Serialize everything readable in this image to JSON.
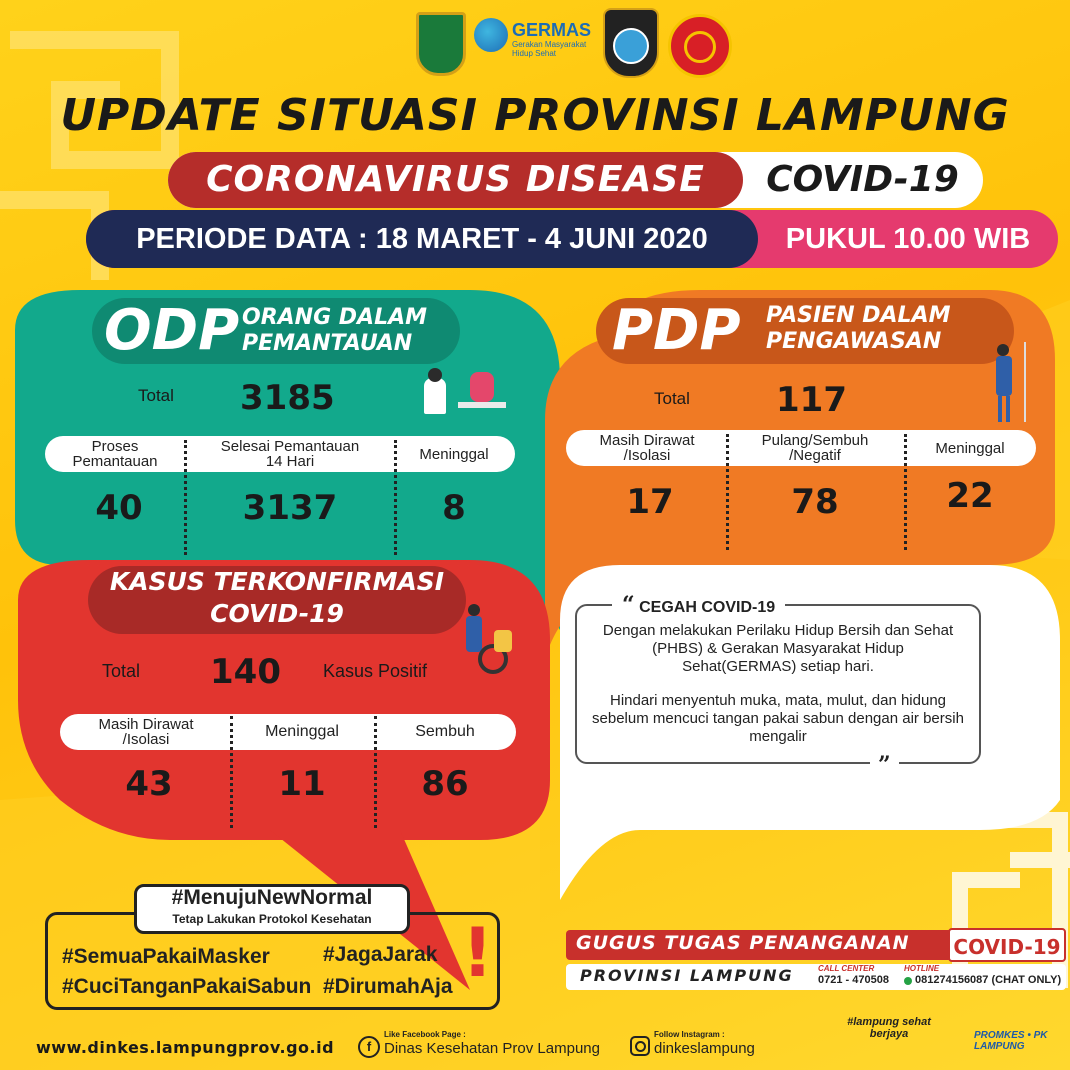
{
  "colors": {
    "background": "#ffc20a",
    "odp_green": "#12a98c",
    "pdp_orange": "#f07a24",
    "confirmed_red": "#e2352f",
    "banner_red": "#b52d2a",
    "navy": "#1f2a55",
    "pink": "#e53a6e",
    "white": "#ffffff"
  },
  "header": {
    "logos": [
      "lampung-province-emblem",
      "germas-logo",
      "lampung-police-emblem",
      "military-emblem"
    ],
    "germas_label": "GERMAS",
    "germas_sub": "Gerakan Masyarakat Hidup Sehat",
    "title": "UPDATE SITUASI PROVINSI LAMPUNG",
    "subtitle_left": "CORONAVIRUS DISEASE",
    "subtitle_right": "COVID-19",
    "period": "PERIODE DATA : 18 MARET - 4 JUNI 2020",
    "time": "PUKUL 10.00 WIB"
  },
  "odp": {
    "abbr": "ODP",
    "full_line1": "ORANG DALAM",
    "full_line2": "PEMANTAUAN",
    "total_label": "Total",
    "total_value": "3185",
    "columns": [
      "Proses\nPemantauan",
      "Selesai Pemantauan\n14 Hari",
      "Meninggal"
    ],
    "values": [
      "40",
      "3137",
      "8"
    ]
  },
  "pdp": {
    "abbr": "PDP",
    "full_line1": "PASIEN DALAM",
    "full_line2": "PENGAWASAN",
    "total_label": "Total",
    "total_value": "117",
    "columns": [
      "Masih Dirawat\n/Isolasi",
      "Pulang/Sembuh\n/Negatif",
      "Meninggal"
    ],
    "values": [
      "17",
      "78",
      "22"
    ]
  },
  "confirmed": {
    "title_line1": "KASUS TERKONFIRMASI",
    "title_line2": "COVID-19",
    "total_label": "Total",
    "total_value": "140",
    "positive_label": "Kasus Positif",
    "columns": [
      "Masih Dirawat\n/Isolasi",
      "Meninggal",
      "Sembuh"
    ],
    "values": [
      "43",
      "11",
      "86"
    ]
  },
  "prevention": {
    "title": "CEGAH COVID-19",
    "para1": "Dengan melakukan Perilaku Hidup Bersih dan Sehat (PHBS) & Gerakan Masyarakat Hidup Sehat(GERMAS) setiap hari.",
    "para2": "Hindari menyentuh muka, mata, mulut, dan hidung sebelum mencuci tangan pakai sabun dengan air bersih mengalir"
  },
  "campaign": {
    "headline": "#MenujuNewNormal",
    "subline": "Tetap Lakukan Protokol Kesehatan",
    "tags": [
      "#SemuaPakaiMasker",
      "#JagaJarak",
      "#CuciTanganPakaiSabun",
      "#DirumahAja"
    ],
    "mark": "!"
  },
  "task_force": {
    "line1": "GUGUS TUGAS PENANGANAN",
    "badge": "COVID-19",
    "line2": "PROVINSI LAMPUNG",
    "call_center_label": "CALL CENTER",
    "call_center_number": "0721 - 470508",
    "hotline_label": "HOTLINE",
    "hotline_number": "081274156087 (CHAT ONLY)"
  },
  "footer": {
    "website": "www.dinkes.lampungprov.go.id",
    "facebook_caption": "Like Facebook Page :",
    "facebook_name": "Dinas Kesehatan Prov Lampung",
    "instagram_caption": "Follow Instagram :",
    "instagram_name": "dinkeslampung",
    "badge_text": "#lampung sehat berjaya",
    "promkes_label": "PROMKES • PK LAMPUNG"
  }
}
